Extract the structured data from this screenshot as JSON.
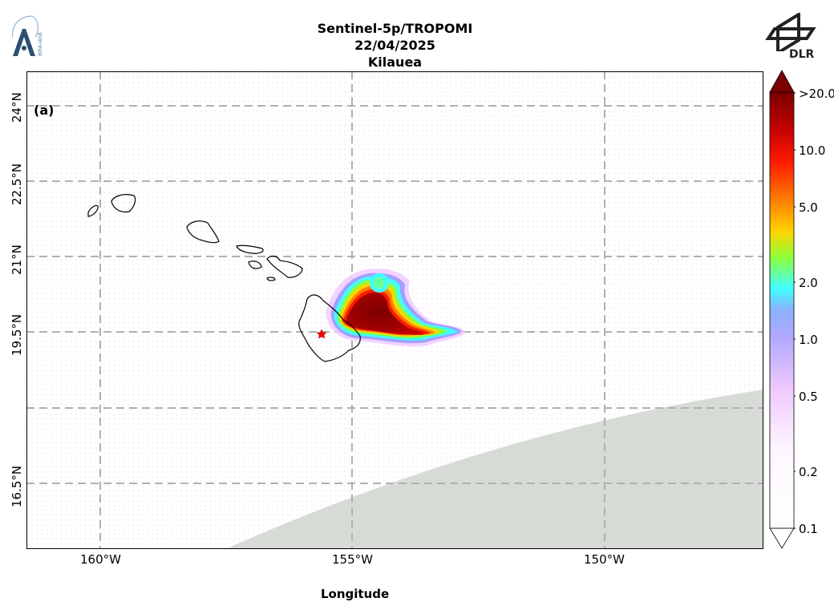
{
  "header": {
    "title_line1": "Sentinel-5p/TROPOMI",
    "title_line2": "22/04/2025",
    "title_line3": "Kilauea"
  },
  "logos": {
    "left": {
      "icon": "bira-iasb-logo",
      "text": "BIRA-IASB"
    },
    "right": {
      "icon": "dlr-logo",
      "text": "DLR"
    }
  },
  "map": {
    "panel_label": "(a)",
    "xlabel": "Longitude",
    "ylabel": "",
    "lon_range": [
      -161.45,
      -146.85
    ],
    "lat_range": [
      15.5,
      25.0
    ],
    "x_ticks": [
      "160°W",
      "155°W",
      "150°W"
    ],
    "y_ticks": [
      "24°N",
      "22.5°N",
      "21°N",
      "19.5°N",
      "16.5°N"
    ],
    "gridlines": true,
    "volcano_marker": {
      "lon": -155.29,
      "lat": 19.42,
      "symbol": "star",
      "color": "#ff0000"
    },
    "land_color": "#d7dbd6",
    "plume_colors": [
      "#7b0000",
      "#b40000",
      "#ff1a00",
      "#ff8000",
      "#ffd400",
      "#8cff3c",
      "#40ffff",
      "#a0a0ff",
      "#f0c8ff"
    ]
  },
  "colorbar": {
    "ticks": [
      "0.1",
      "0.2",
      "0.5",
      "1.0",
      "2.0",
      "5.0",
      "10.0",
      ">20.0"
    ],
    "extend": "both",
    "scale": "log"
  }
}
